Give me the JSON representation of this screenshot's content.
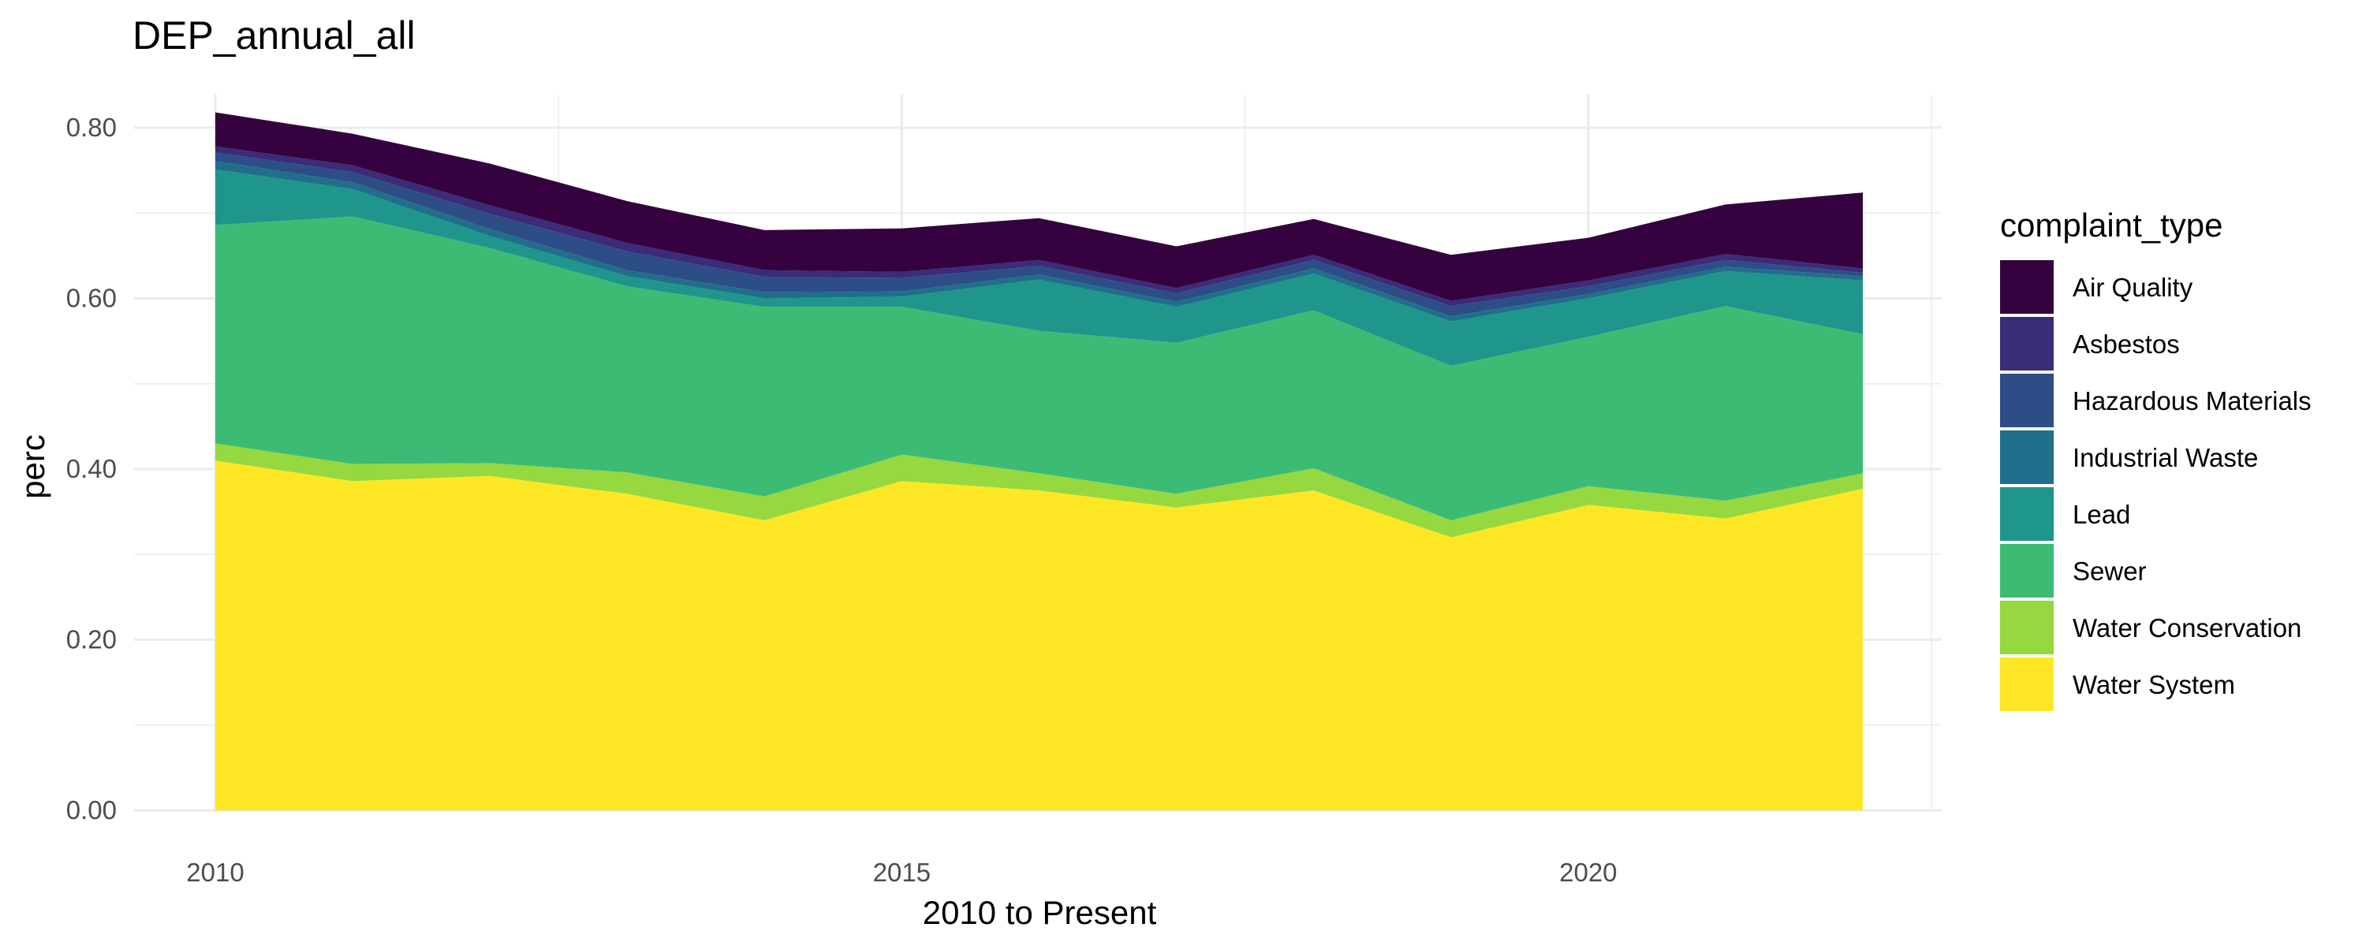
{
  "chart_data": {
    "type": "area",
    "stacked": true,
    "title": "DEP_annual_all",
    "xlabel": "2010 to Present",
    "ylabel": "perc",
    "xlim": [
      2009.5,
      2022.5
    ],
    "ylim": [
      0,
      0.8
    ],
    "x_ticks": [
      2010,
      2015,
      2020
    ],
    "y_ticks": [
      "0.00",
      "0.20",
      "0.40",
      "0.60",
      "0.80"
    ],
    "grid": true,
    "legend_title": "complaint_type",
    "legend_position": "right",
    "x": [
      2010,
      2011,
      2012,
      2013,
      2014,
      2015,
      2016,
      2017,
      2018,
      2019,
      2020,
      2021,
      2022
    ],
    "series": [
      {
        "name": "Water System",
        "color": "#FDE725",
        "values": [
          0.41,
          0.386,
          0.392,
          0.371,
          0.34,
          0.386,
          0.375,
          0.355,
          0.375,
          0.32,
          0.358,
          0.342,
          0.377
        ]
      },
      {
        "name": "Water Conservation",
        "color": "#95D840",
        "values": [
          0.02,
          0.02,
          0.015,
          0.025,
          0.028,
          0.031,
          0.02,
          0.016,
          0.026,
          0.02,
          0.022,
          0.021,
          0.018
        ]
      },
      {
        "name": "Sewer",
        "color": "#3CBB75",
        "values": [
          0.256,
          0.29,
          0.252,
          0.218,
          0.222,
          0.173,
          0.167,
          0.177,
          0.185,
          0.181,
          0.175,
          0.228,
          0.163
        ]
      },
      {
        "name": "Lead",
        "color": "#1F968B",
        "values": [
          0.065,
          0.032,
          0.014,
          0.012,
          0.01,
          0.012,
          0.06,
          0.042,
          0.043,
          0.052,
          0.045,
          0.041,
          0.063
        ]
      },
      {
        "name": "Industrial Waste",
        "color": "#1F6F8B",
        "values": [
          0.01,
          0.008,
          0.008,
          0.007,
          0.007,
          0.006,
          0.006,
          0.006,
          0.006,
          0.006,
          0.005,
          0.005,
          0.005
        ]
      },
      {
        "name": "Hazardous Materials",
        "color": "#2D4D86",
        "values": [
          0.01,
          0.012,
          0.018,
          0.022,
          0.018,
          0.016,
          0.01,
          0.01,
          0.01,
          0.012,
          0.009,
          0.008,
          0.004
        ]
      },
      {
        "name": "Asbestos",
        "color": "#3A2C79",
        "values": [
          0.007,
          0.008,
          0.01,
          0.01,
          0.008,
          0.007,
          0.007,
          0.006,
          0.006,
          0.006,
          0.007,
          0.007,
          0.005
        ]
      },
      {
        "name": "Air Quality",
        "color": "#35023F",
        "values": [
          0.04,
          0.037,
          0.049,
          0.049,
          0.047,
          0.051,
          0.049,
          0.049,
          0.042,
          0.054,
          0.05,
          0.058,
          0.089
        ]
      }
    ]
  }
}
